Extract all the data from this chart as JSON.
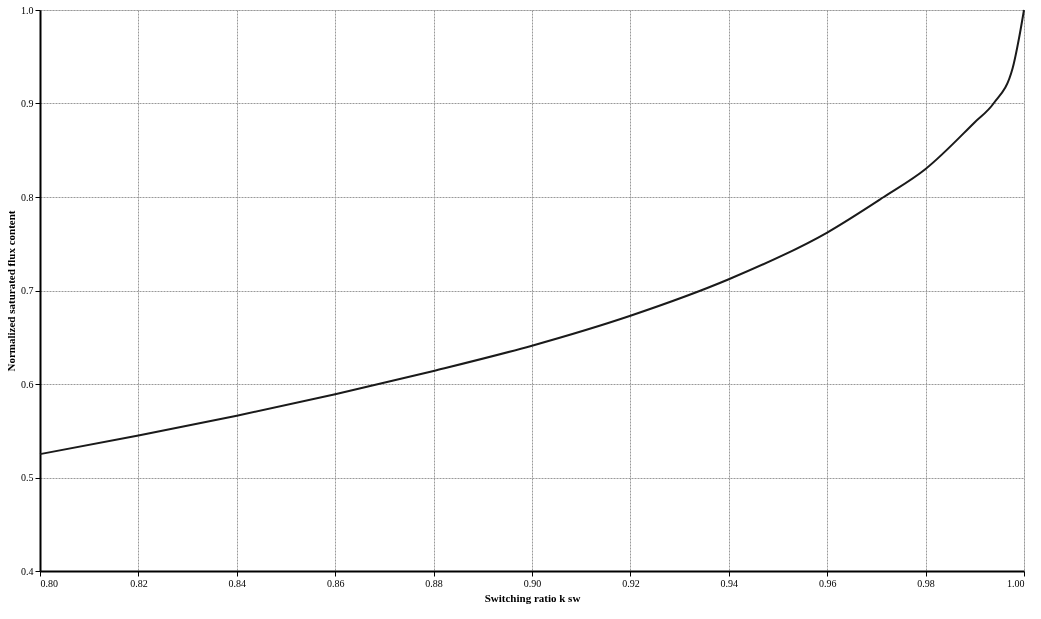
{
  "chart_data": {
    "type": "line",
    "xlabel": "Switching ratio k sw",
    "ylabel": "Normalized saturated flux content",
    "x": [
      0.8,
      0.82,
      0.84,
      0.86,
      0.88,
      0.9,
      0.92,
      0.94,
      0.96,
      0.9715,
      0.98,
      0.99,
      0.9938,
      0.9977,
      0.9991,
      1.0
    ],
    "series": [
      {
        "color": "#1a1a1a",
        "values": [
          0.525,
          0.545,
          0.566,
          0.589,
          0.614,
          0.641,
          0.673,
          0.712,
          0.762,
          0.8,
          0.83,
          0.88,
          0.9,
          0.938,
          0.973,
          1.0
        ]
      }
    ],
    "xlim": [
      0.8,
      1.0
    ],
    "xticks": [
      {
        "value": 0.8,
        "label": "0.80"
      },
      0.82,
      0.84,
      0.86,
      0.88,
      {
        "value": 0.9,
        "label": "0.90"
      },
      0.92,
      0.94,
      0.96,
      0.98,
      {
        "value": 1.0,
        "label": "1.00"
      }
    ],
    "ylim": [
      0.4,
      1.0
    ],
    "yticks": [
      0.4,
      0.5,
      0.6,
      0.7,
      0.8,
      0.9,
      {
        "value": 1.0,
        "label": "1.0"
      }
    ],
    "grid": true,
    "line_style": "solid",
    "marker": "none"
  }
}
